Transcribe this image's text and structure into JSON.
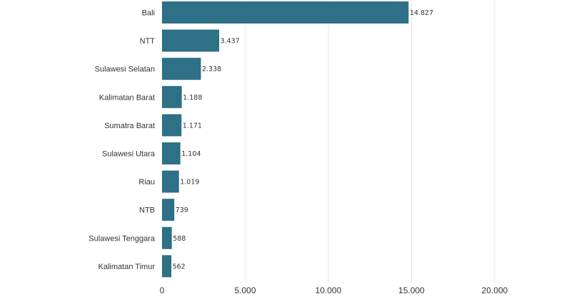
{
  "chart_data": {
    "type": "bar",
    "orientation": "horizontal",
    "categories": [
      "Bali",
      "NTT",
      "Sulawesi Selatan",
      "Kalimatan Barat",
      "Sumatra Barat",
      "Sulawesi Utara",
      "Riau",
      "NTB",
      "Sulawesi Tenggara",
      "Kalimatan Timur"
    ],
    "values": [
      14827,
      3437,
      2338,
      1188,
      1171,
      1104,
      1019,
      739,
      588,
      562
    ],
    "value_labels": [
      "14.827",
      "3.437",
      "2.338",
      "1.188",
      "1.171",
      "1.104",
      "1.019",
      "739",
      "588",
      "562"
    ],
    "title": "",
    "xlabel": "",
    "ylabel": "",
    "xlim": [
      0,
      20000
    ],
    "x_ticks": [
      0,
      5000,
      10000,
      15000,
      20000
    ],
    "x_tick_labels": [
      "0",
      "5.000",
      "10.000",
      "15.000",
      "20.000"
    ],
    "grid": "vertical",
    "bar_color": "#2e7085"
  }
}
